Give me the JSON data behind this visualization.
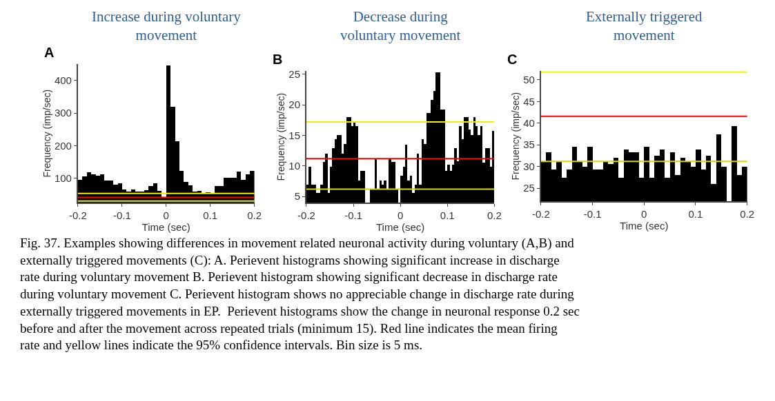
{
  "chart_data": [
    {
      "type": "histogram",
      "title": "Increase during voluntary\nmovement",
      "annotations": [
        "A",
        "Fig. 37. Examples showing differences in movement related neuronal activity during voluntary (A,B) and externally triggered movements (C): A. Perievent histograms showing significant increase in discharge rate during voluntary movement B. Perievent histogram showing significant decrease in discharge rate during voluntary movement C. Perievent histogram shows no appreciable change in discharge rate during externally triggered movements in EP.  Perievent histograms show the change in neuronal response 0.2 sec before and after the movement across repeated trials (minimum 15). Red line indicates the mean firing rate and yellow lines indicate the 95% confidence intervals. Bin size is 5 ms."
      ],
      "xlabel": "Time (sec)",
      "ylabel": "Frequency (imp/sec)",
      "color": "#000000",
      "bins": [
        -0.2,
        -0.19,
        -0.18,
        -0.17,
        -0.16,
        -0.15,
        -0.14,
        -0.13,
        -0.12,
        -0.11,
        -0.1,
        -0.09,
        -0.08,
        -0.07,
        -0.06,
        -0.05,
        -0.04,
        -0.03,
        -0.02,
        -0.01,
        0,
        0.01,
        0.02,
        0.03,
        0.04,
        0.05,
        0.06,
        0.07,
        0.08,
        0.09,
        0.1,
        0.11,
        0.12,
        0.13,
        0.14,
        0.15,
        0.16,
        0.17,
        0.18,
        0.19,
        0.2
      ],
      "values": [
        94,
        104,
        117,
        111,
        107,
        111,
        93,
        93,
        80,
        83,
        64,
        59,
        64,
        59,
        59,
        62,
        76,
        83,
        60,
        42,
        446,
        318,
        212,
        122,
        87,
        77,
        59,
        61,
        53,
        57,
        53,
        76,
        75,
        100,
        100,
        100,
        120,
        95,
        111,
        122
      ],
      "xlim": [
        -0.2,
        0.2
      ],
      "xticks": [
        -0.2,
        -0.1,
        0,
        0.1,
        0.2
      ],
      "ylim": [
        25,
        450
      ],
      "yticks": [
        100,
        200,
        300,
        400
      ],
      "ref_lines": [
        {
          "axis": "y",
          "value": 53,
          "color": "#f0f000"
        },
        {
          "axis": "y",
          "value": 41,
          "color": "#ff0000"
        },
        {
          "axis": "y",
          "value": 30,
          "color": "#f0f000"
        }
      ]
    },
    {
      "type": "histogram",
      "title": "Decrease during\nvoluntary movement",
      "annotations": [
        "B"
      ],
      "xlabel": "Time (sec)",
      "ylabel": "Frequency (imp/sec)",
      "color": "#000000",
      "bins": [
        -0.2,
        -0.195,
        -0.19,
        -0.185,
        -0.18,
        -0.175,
        -0.17,
        -0.165,
        -0.16,
        -0.155,
        -0.15,
        -0.145,
        -0.14,
        -0.135,
        -0.13,
        -0.125,
        -0.12,
        -0.115,
        -0.11,
        -0.105,
        -0.1,
        -0.095,
        -0.09,
        -0.085,
        -0.08,
        -0.075,
        -0.07,
        -0.065,
        -0.06,
        -0.055,
        -0.05,
        -0.045,
        -0.04,
        -0.035,
        -0.03,
        -0.025,
        -0.02,
        -0.015,
        -0.01,
        -0.005,
        0,
        0.005,
        0.01,
        0.015,
        0.02,
        0.025,
        0.03,
        0.035,
        0.04,
        0.045,
        0.05,
        0.055,
        0.06,
        0.065,
        0.07,
        0.075,
        0.08,
        0.085,
        0.09,
        0.095,
        0.1,
        0.105,
        0.11,
        0.115,
        0.12,
        0.125,
        0.13,
        0.135,
        0.14,
        0.145,
        0.15,
        0.155,
        0.16,
        0.165,
        0.17,
        0.175,
        0.18,
        0.185,
        0.19,
        0.195,
        0.2
      ],
      "values": [
        6.9,
        9.8,
        6.9,
        6.9,
        5.5,
        5.5,
        6.9,
        10.6,
        12.0,
        5.5,
        9.8,
        12.9,
        14.3,
        15.0,
        15.0,
        12.0,
        13.5,
        17.9,
        17.9,
        16.5,
        17.1,
        16.5,
        7.6,
        9.1,
        9.1,
        null,
        null,
        6.2,
        6.2,
        11.2,
        6.2,
        7.6,
        6.9,
        7.6,
        6.2,
        11.2,
        10.6,
        10.6,
        6.2,
        null,
        8.4,
        9.8,
        13.4,
        7.6,
        8.4,
        5.5,
        6.9,
        12.0,
        6.9,
        14.3,
        13.6,
        18.6,
        18.6,
        20.8,
        22.2,
        25.3,
        25.3,
        19.2,
        19.2,
        9.1,
        10.2,
        9.1,
        10.2,
        12.9,
        10.7,
        16.5,
        14.3,
        17.9,
        17.9,
        15.9,
        15.0,
        17.9,
        16.5,
        15.0,
        16.5,
        10.5,
        12.9,
        12.9,
        9.8,
        15.7
      ],
      "xlim": [
        -0.2,
        0.2
      ],
      "xticks": [
        -0.2,
        -0.1,
        0,
        0.1,
        0.2
      ],
      "ylim": [
        4,
        25.5
      ],
      "yticks": [
        5,
        10,
        15,
        20,
        25
      ],
      "ref_lines": [
        {
          "axis": "y",
          "value": 17.2,
          "color": "#f0f000"
        },
        {
          "axis": "y",
          "value": 11.2,
          "color": "#ff0000"
        },
        {
          "axis": "y",
          "value": 6.2,
          "color": "#d8d800"
        }
      ]
    },
    {
      "type": "histogram",
      "title": "Externally triggered\nmovement",
      "annotations": [
        "C"
      ],
      "xlabel": "Time (sec)",
      "ylabel": "Frequency (imp/sec)",
      "color": "#000000",
      "bins": [
        -0.2,
        -0.19,
        -0.18,
        -0.17,
        -0.16,
        -0.15,
        -0.14,
        -0.13,
        -0.12,
        -0.11,
        -0.1,
        -0.09,
        -0.08,
        -0.07,
        -0.06,
        -0.05,
        -0.04,
        -0.03,
        -0.02,
        -0.01,
        0,
        0.01,
        0.02,
        0.03,
        0.04,
        0.05,
        0.06,
        0.07,
        0.08,
        0.09,
        0.1,
        0.11,
        0.12,
        0.13,
        0.14,
        0.15,
        0.16,
        0.17,
        0.18,
        0.19,
        0.2
      ],
      "values": [
        31.1,
        33.2,
        29.3,
        31.1,
        27.3,
        29.3,
        34.5,
        31.1,
        29.9,
        34.5,
        29.3,
        29.3,
        31.1,
        30.6,
        31.9,
        27.3,
        33.9,
        33.2,
        33.2,
        27.3,
        34.5,
        27.3,
        32.5,
        33.9,
        27.3,
        33.2,
        28.0,
        31.9,
        31.1,
        29.9,
        33.9,
        29.3,
        32.5,
        26.0,
        37.3,
        29.9,
        null,
        39.3,
        28.0,
        29.9
      ],
      "xlim": [
        -0.2,
        0.2
      ],
      "xticks": [
        -0.2,
        -0.1,
        0,
        0.1,
        0.2
      ],
      "ylim": [
        22,
        52
      ],
      "yticks": [
        25,
        30,
        35,
        40,
        45,
        50
      ],
      "ref_lines": [
        {
          "axis": "y",
          "value": 51.8,
          "color": "#f0f000"
        },
        {
          "axis": "y",
          "value": 41.6,
          "color": "#ff0000"
        },
        {
          "axis": "y",
          "value": 31.2,
          "color": "#d8d800"
        }
      ]
    }
  ]
}
